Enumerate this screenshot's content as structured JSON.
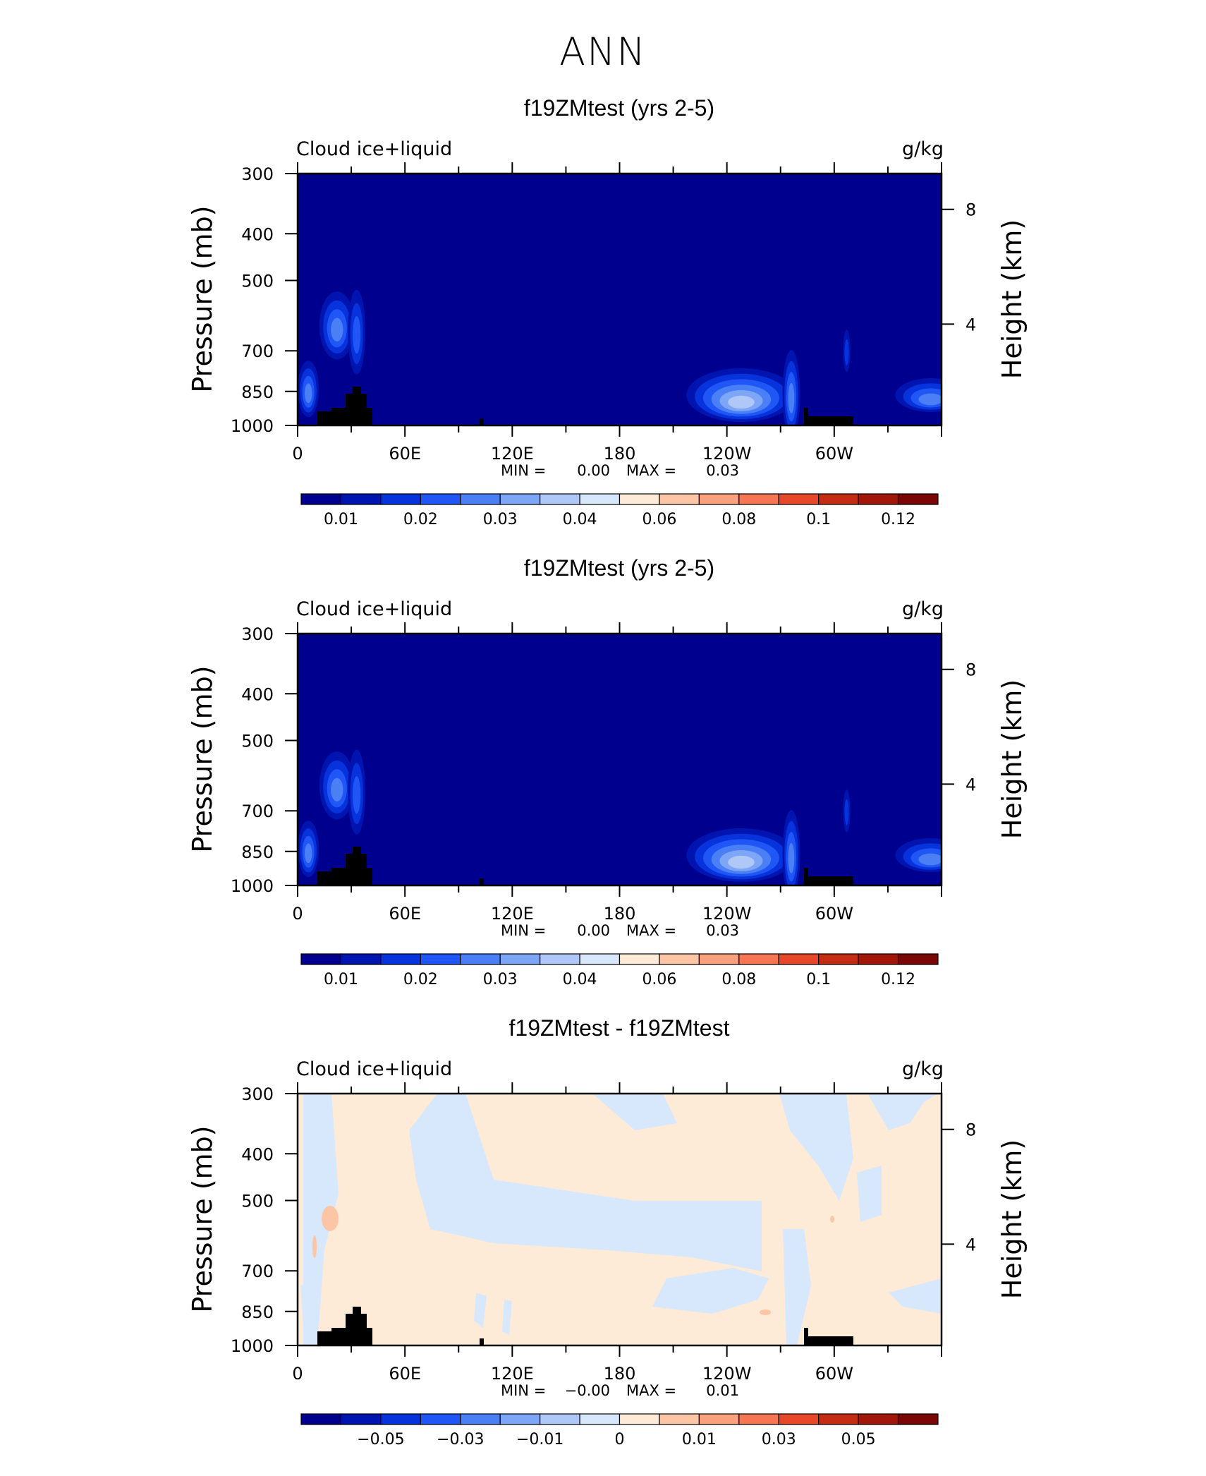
{
  "page": {
    "title": "ANN"
  },
  "chart_data": [
    {
      "type": "heatmap",
      "title": "f19ZMtest (yrs 2-5)",
      "left_label": "Cloud ice+liquid",
      "right_label": "g/kg",
      "ylabel": "Pressure (mb)",
      "ylabel_right": "Height (km)",
      "x_ticks": [
        "0",
        "60E",
        "120E",
        "180",
        "120W",
        "60W"
      ],
      "y_ticks": [
        "300",
        "400",
        "500",
        "700",
        "850",
        "1000"
      ],
      "y_right_ticks": [
        "8",
        "4"
      ],
      "min_label": "MIN =",
      "min_value": "0.00",
      "max_label": "MAX =",
      "max_value": "0.03",
      "colorbar_labels": [
        "0.01",
        "0.02",
        "0.03",
        "0.04",
        "0.06",
        "0.08",
        "0.1",
        "0.12"
      ],
      "colorbar_colors": [
        "#00008f",
        "#0015b0",
        "#0733dc",
        "#1f56f5",
        "#4b7ff5",
        "#7ea6f7",
        "#b0c8f8",
        "#d8e8fc",
        "#fdebd8",
        "#fcc6a6",
        "#f9a07c",
        "#f67654",
        "#e8482a",
        "#c42c14",
        "#a1170a",
        "#7b0606"
      ],
      "regions": [
        {
          "desc": "west blob",
          "lon": 5,
          "p": 850,
          "rx": 4,
          "ry": 0.18,
          "level": 4
        },
        {
          "desc": "africa upper",
          "lon": 28,
          "p": 640,
          "rx": 6,
          "ry": 0.25,
          "level": 4
        },
        {
          "desc": "pacific peak",
          "lon": 245,
          "p": 860,
          "rx": 22,
          "ry": 0.2,
          "level": 5
        },
        {
          "desc": "atlantic",
          "lon": 355,
          "p": 860,
          "rx": 12,
          "ry": 0.14,
          "level": 4
        }
      ]
    },
    {
      "type": "heatmap",
      "title": "f19ZMtest (yrs 2-5)",
      "left_label": "Cloud ice+liquid",
      "right_label": "g/kg",
      "ylabel": "Pressure (mb)",
      "ylabel_right": "Height (km)",
      "x_ticks": [
        "0",
        "60E",
        "120E",
        "180",
        "120W",
        "60W"
      ],
      "y_ticks": [
        "300",
        "400",
        "500",
        "700",
        "850",
        "1000"
      ],
      "y_right_ticks": [
        "8",
        "4"
      ],
      "min_label": "MIN =",
      "min_value": "0.00",
      "max_label": "MAX =",
      "max_value": "0.03",
      "colorbar_labels": [
        "0.01",
        "0.02",
        "0.03",
        "0.04",
        "0.06",
        "0.08",
        "0.1",
        "0.12"
      ],
      "colorbar_colors": [
        "#00008f",
        "#0015b0",
        "#0733dc",
        "#1f56f5",
        "#4b7ff5",
        "#7ea6f7",
        "#b0c8f8",
        "#d8e8fc",
        "#fdebd8",
        "#fcc6a6",
        "#f9a07c",
        "#f67654",
        "#e8482a",
        "#c42c14",
        "#a1170a",
        "#7b0606"
      ]
    },
    {
      "type": "heatmap",
      "title": "f19ZMtest - f19ZMtest",
      "left_label": "Cloud ice+liquid",
      "right_label": "g/kg",
      "ylabel": "Pressure (mb)",
      "ylabel_right": "Height (km)",
      "x_ticks": [
        "0",
        "60E",
        "120E",
        "180",
        "120W",
        "60W"
      ],
      "y_ticks": [
        "300",
        "400",
        "500",
        "700",
        "850",
        "1000"
      ],
      "y_right_ticks": [
        "8",
        "4"
      ],
      "min_label": "MIN =",
      "min_value": "−0.00",
      "max_label": "MAX =",
      "max_value": "0.01",
      "colorbar_labels": [
        "−0.05",
        "−0.03",
        "−0.01",
        "0",
        "0.01",
        "0.03",
        "0.05"
      ],
      "colorbar_colors": [
        "#00008f",
        "#0015b0",
        "#0733dc",
        "#1f56f5",
        "#4b7ff5",
        "#7ea6f7",
        "#b0c8f8",
        "#d8e8fc",
        "#fdebd8",
        "#fcc6a6",
        "#f9a07c",
        "#f67654",
        "#e8482a",
        "#c42c14",
        "#a1170a",
        "#7b0606"
      ]
    }
  ]
}
